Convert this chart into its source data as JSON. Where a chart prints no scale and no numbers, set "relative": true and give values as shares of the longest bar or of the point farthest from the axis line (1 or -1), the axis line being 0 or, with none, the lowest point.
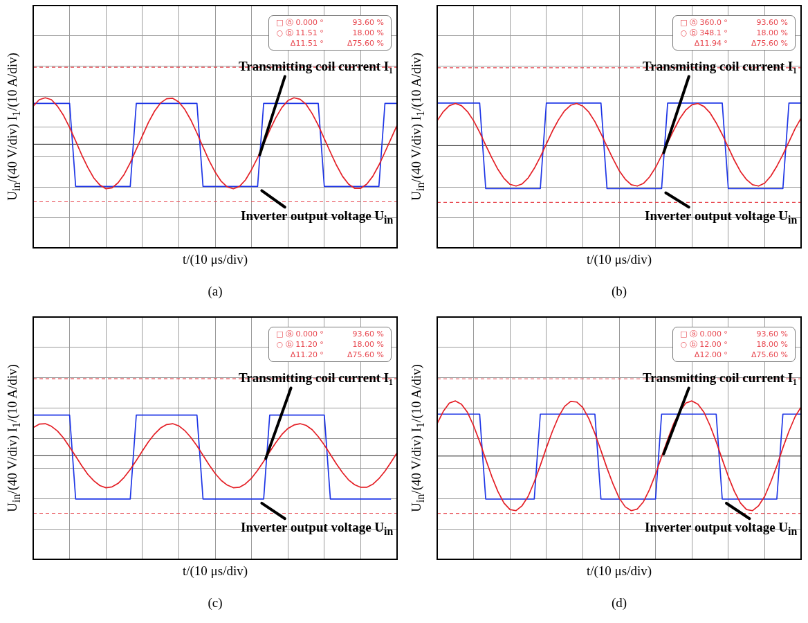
{
  "chart_data": [
    {
      "type": "line",
      "title": "(a)",
      "xlabel": "t/(10 μs/div)",
      "ylabel": "U$_{in}$/(40 V/div) I$_{1}$/(10 A/div)",
      "relative": true,
      "grid": true,
      "marker": "none",
      "categories": [
        null,
        null,
        null,
        null,
        null,
        null,
        null,
        null,
        null,
        null,
        null,
        null,
        null,
        null,
        null,
        null,
        null,
        null,
        null,
        null,
        null,
        null,
        null,
        null,
        null,
        null,
        null,
        null,
        null,
        null,
        null,
        null,
        null,
        null,
        null,
        null,
        null,
        null,
        null,
        null,
        null,
        null,
        null,
        null,
        null,
        null,
        null,
        null,
        null,
        null,
        null,
        null,
        null,
        null,
        null,
        null,
        null,
        null,
        null,
        null,
        null
      ],
      "series": [
        {
          "name": "Transmitting coil current I₁",
          "color": "#e41f26",
          "values": [
            0.82,
            0.96,
            1,
            0.96,
            0.82,
            0.62,
            0.36,
            0.07,
            -0.23,
            -0.5,
            -0.73,
            -0.88,
            -0.96,
            -0.94,
            -0.83,
            -0.65,
            -0.4,
            -0.11,
            0.18,
            0.47,
            0.71,
            0.89,
            0.98,
            0.99,
            0.91,
            0.75,
            0.52,
            0.24,
            -0.06,
            -0.35,
            -0.6,
            -0.8,
            -0.92,
            -0.96,
            -0.91,
            -0.77,
            -0.55,
            -0.29,
            0,
            0.3,
            0.57,
            0.79,
            0.94,
            1,
            0.97,
            0.86,
            0.66,
            0.41,
            0.12,
            -0.17,
            -0.45,
            -0.69,
            -0.86,
            -0.95,
            -0.95,
            -0.86,
            -0.69,
            -0.45,
            -0.17,
            0.12,
            0.41
          ]
        },
        {
          "name": "Inverter output voltage U$_{in}$",
          "color": "#1d35e6",
          "values": [
            0.88,
            0.88,
            0.88,
            0.88,
            0.88,
            0.88,
            0.88,
            -0.91,
            -0.91,
            -0.91,
            -0.91,
            -0.91,
            -0.91,
            -0.91,
            -0.91,
            -0.91,
            -0.91,
            0.88,
            0.88,
            0.88,
            0.88,
            0.88,
            0.88,
            0.88,
            0.88,
            0.88,
            0.88,
            0.88,
            -0.91,
            -0.91,
            -0.91,
            -0.91,
            -0.91,
            -0.91,
            -0.91,
            -0.91,
            -0.91,
            -0.91,
            0.88,
            0.88,
            0.88,
            0.88,
            0.88,
            0.88,
            0.88,
            0.88,
            0.88,
            0.88,
            -0.91,
            -0.91,
            -0.91,
            -0.91,
            -0.91,
            -0.91,
            -0.91,
            -0.91,
            -0.91,
            -0.91,
            0.88,
            0.88,
            0.88
          ]
        }
      ],
      "ref_lines": [
        {
          "axis": "y",
          "value": 1.66,
          "color": "#e8474f",
          "line_style": "dashed"
        },
        {
          "axis": "y",
          "value": -1.24,
          "color": "#e8474f",
          "line_style": "dashed"
        }
      ],
      "annotations": [
        "□ ⓐ 0.000 °",
        "93.60 %",
        "○ ⓑ 11.51 °",
        "18.00 %",
        "Δ11.51 °",
        "Δ75.60 %"
      ]
    },
    {
      "type": "line",
      "title": "(b)",
      "xlabel": "t/(10 μs/div)",
      "ylabel": "U$_{in}$/(40 V/div) I$_{1}$/(10 A/div)",
      "relative": true,
      "grid": true,
      "marker": "none",
      "categories": [
        null,
        null,
        null,
        null,
        null,
        null,
        null,
        null,
        null,
        null,
        null,
        null,
        null,
        null,
        null,
        null,
        null,
        null,
        null,
        null,
        null,
        null,
        null,
        null,
        null,
        null,
        null,
        null,
        null,
        null,
        null,
        null,
        null,
        null,
        null,
        null,
        null,
        null,
        null,
        null,
        null,
        null,
        null,
        null,
        null,
        null,
        null,
        null,
        null,
        null,
        null,
        null,
        null,
        null,
        null,
        null,
        null,
        null,
        null,
        null,
        null
      ],
      "series": [
        {
          "name": "Transmitting coil current I₁",
          "color": "#e41f26",
          "values": [
            0.58,
            0.79,
            0.93,
            0.98,
            0.93,
            0.79,
            0.58,
            0.31,
            0.01,
            -0.28,
            -0.55,
            -0.76,
            -0.9,
            -0.94,
            -0.89,
            -0.75,
            -0.53,
            -0.26,
            0.04,
            0.34,
            0.6,
            0.81,
            0.94,
            0.98,
            0.92,
            0.78,
            0.56,
            0.28,
            -0.02,
            -0.31,
            -0.58,
            -0.78,
            -0.91,
            -0.94,
            -0.88,
            -0.73,
            -0.51,
            -0.23,
            0.07,
            0.36,
            0.63,
            0.83,
            0.95,
            0.98,
            0.91,
            0.76,
            0.53,
            0.26,
            -0.04,
            -0.34,
            -0.6,
            -0.79,
            -0.91,
            -0.94,
            -0.87,
            -0.71,
            -0.48,
            -0.21,
            0.09,
            0.39,
            0.64
          ]
        },
        {
          "name": "Inverter output voltage U$_{in}$",
          "color": "#1d35e6",
          "values": [
            0.99,
            0.99,
            0.99,
            0.99,
            0.99,
            0.99,
            0.99,
            0.99,
            -1,
            -1,
            -1,
            -1,
            -1,
            -1,
            -1,
            -1,
            -1,
            -1,
            0.99,
            0.99,
            0.99,
            0.99,
            0.99,
            0.99,
            0.99,
            0.99,
            0.99,
            0.99,
            -1,
            -1,
            -1,
            -1,
            -1,
            -1,
            -1,
            -1,
            -1,
            -1,
            0.99,
            0.99,
            0.99,
            0.99,
            0.99,
            0.99,
            0.99,
            0.99,
            0.99,
            0.99,
            -1,
            -1,
            -1,
            -1,
            -1,
            -1,
            -1,
            -1,
            -1,
            -1,
            0.99,
            0.99,
            0.99
          ]
        }
      ],
      "ref_lines": [
        {
          "axis": "y",
          "value": 1.81,
          "color": "#e8474f",
          "line_style": "dashed"
        },
        {
          "axis": "y",
          "value": -1.32,
          "color": "#e8474f",
          "line_style": "dashed"
        }
      ],
      "annotations": [
        "□ ⓐ 360.0 °",
        "93.60 %",
        "○ ⓑ 348.1 °",
        "18.00 %",
        "Δ11.94 °",
        "Δ75.60 %"
      ]
    },
    {
      "type": "line",
      "title": "(c)",
      "xlabel": "t/(10 μs/div)",
      "ylabel": "U$_{in}$/(40 V/div) I$_{1}$/(10 A/div)",
      "relative": true,
      "grid": true,
      "marker": "none",
      "categories": [
        null,
        null,
        null,
        null,
        null,
        null,
        null,
        null,
        null,
        null,
        null,
        null,
        null,
        null,
        null,
        null,
        null,
        null,
        null,
        null,
        null,
        null,
        null,
        null,
        null,
        null,
        null,
        null,
        null,
        null,
        null,
        null,
        null,
        null,
        null,
        null,
        null,
        null,
        null,
        null,
        null,
        null,
        null,
        null,
        null,
        null,
        null,
        null,
        null,
        null,
        null,
        null,
        null,
        null,
        null,
        null,
        null,
        null,
        null,
        null,
        null
      ],
      "series": [
        {
          "name": "Transmitting coil current I₁",
          "color": "#e41f26",
          "values": [
            0.65,
            0.73,
            0.74,
            0.68,
            0.57,
            0.41,
            0.2,
            -0.01,
            -0.23,
            -0.43,
            -0.58,
            -0.69,
            -0.74,
            -0.72,
            -0.64,
            -0.5,
            -0.32,
            -0.11,
            0.11,
            0.32,
            0.5,
            0.64,
            0.72,
            0.74,
            0.69,
            0.58,
            0.42,
            0.23,
            0.01,
            -0.21,
            -0.41,
            -0.57,
            -0.68,
            -0.74,
            -0.73,
            -0.65,
            -0.52,
            -0.34,
            -0.13,
            0.09,
            0.3,
            0.49,
            0.63,
            0.71,
            0.74,
            0.7,
            0.6,
            0.44,
            0.25,
            0.03,
            -0.19,
            -0.39,
            -0.56,
            -0.67,
            -0.73,
            -0.73,
            -0.66,
            -0.53,
            -0.36,
            -0.15,
            0.07
          ]
        },
        {
          "name": "Inverter output voltage U$_{in}$",
          "color": "#1d35e6",
          "values": [
            0.94,
            0.94,
            0.94,
            0.94,
            0.94,
            0.94,
            0.94,
            -1,
            -1,
            -1,
            -1,
            -1,
            -1,
            -1,
            -1,
            -1,
            -1,
            0.94,
            0.94,
            0.94,
            0.94,
            0.94,
            0.94,
            0.94,
            0.94,
            0.94,
            0.94,
            0.94,
            -1,
            -1,
            -1,
            -1,
            -1,
            -1,
            -1,
            -1,
            -1,
            -1,
            -1,
            0.94,
            0.94,
            0.94,
            0.94,
            0.94,
            0.94,
            0.94,
            0.94,
            0.94,
            0.94,
            -1,
            -1,
            -1,
            -1,
            -1,
            -1,
            -1,
            -1,
            -1,
            -1,
            -1,
            null
          ]
        }
      ],
      "ref_lines": [
        {
          "axis": "y",
          "value": 1.78,
          "color": "#e8474f",
          "line_style": "dashed"
        },
        {
          "axis": "y",
          "value": -1.33,
          "color": "#e8474f",
          "line_style": "dashed"
        }
      ],
      "annotations": [
        "□ ⓐ 0.000 °",
        "93.60 %",
        "○ ⓑ 11.20 °",
        "18.00 %",
        "Δ11.20 °",
        "Δ75.60 %"
      ]
    },
    {
      "type": "line",
      "title": "(d)",
      "xlabel": "t/(10 μs/div)",
      "ylabel": "U$_{in}$/(40 V/div) I$_{1}$/(10 A/div)",
      "relative": true,
      "grid": true,
      "marker": "none",
      "categories": [
        null,
        null,
        null,
        null,
        null,
        null,
        null,
        null,
        null,
        null,
        null,
        null,
        null,
        null,
        null,
        null,
        null,
        null,
        null,
        null,
        null,
        null,
        null,
        null,
        null,
        null,
        null,
        null,
        null,
        null,
        null,
        null,
        null,
        null,
        null,
        null,
        null,
        null,
        null,
        null,
        null,
        null,
        null,
        null,
        null,
        null,
        null,
        null,
        null,
        null,
        null,
        null,
        null,
        null,
        null,
        null,
        null,
        null,
        null,
        null,
        null
      ],
      "series": [
        {
          "name": "Transmitting coil current I₁",
          "color": "#e41f26",
          "values": [
            0.59,
            0.81,
            0.96,
            1,
            0.94,
            0.79,
            0.55,
            0.26,
            -0.06,
            -0.37,
            -0.64,
            -0.85,
            -0.97,
            -0.99,
            -0.9,
            -0.73,
            -0.47,
            -0.17,
            0.15,
            0.45,
            0.71,
            0.9,
            0.99,
            0.98,
            0.88,
            0.68,
            0.41,
            0.1,
            -0.22,
            -0.51,
            -0.76,
            -0.92,
            -0.99,
            -0.96,
            -0.83,
            -0.61,
            -0.33,
            -0.01,
            0.3,
            0.59,
            0.81,
            0.96,
            1,
            0.94,
            0.79,
            0.55,
            0.26,
            -0.06,
            -0.37,
            -0.64,
            -0.85,
            -0.97,
            -0.99,
            -0.9,
            -0.73,
            -0.47,
            -0.18,
            0.15,
            0.45,
            0.71,
            0.89
          ]
        },
        {
          "name": "Inverter output voltage U$_{in}$",
          "color": "#1d35e6",
          "values": [
            0.76,
            0.76,
            0.76,
            0.76,
            0.76,
            0.76,
            0.76,
            0.76,
            -0.78,
            -0.78,
            -0.78,
            -0.78,
            -0.78,
            -0.78,
            -0.78,
            -0.78,
            -0.78,
            0.76,
            0.76,
            0.76,
            0.76,
            0.76,
            0.76,
            0.76,
            0.76,
            0.76,
            0.76,
            -0.78,
            -0.78,
            -0.78,
            -0.78,
            -0.78,
            -0.78,
            -0.78,
            -0.78,
            -0.78,
            -0.78,
            0.76,
            0.76,
            0.76,
            0.76,
            0.76,
            0.76,
            0.76,
            0.76,
            0.76,
            0.76,
            -0.78,
            -0.78,
            -0.78,
            -0.78,
            -0.78,
            -0.78,
            -0.78,
            -0.78,
            -0.78,
            -0.78,
            0.76,
            0.76,
            0.76,
            0.76
          ]
        }
      ],
      "ref_lines": [
        {
          "axis": "y",
          "value": 1.4,
          "color": "#e8474f",
          "line_style": "dashed"
        },
        {
          "axis": "y",
          "value": -1.04,
          "color": "#e8474f",
          "line_style": "dashed"
        }
      ],
      "annotations": [
        "□ ⓐ 0.000 °",
        "93.60 %",
        "○ ⓑ 12.00 °",
        "18.00 %",
        "Δ12.00 °",
        "Δ75.60 %"
      ]
    }
  ]
}
